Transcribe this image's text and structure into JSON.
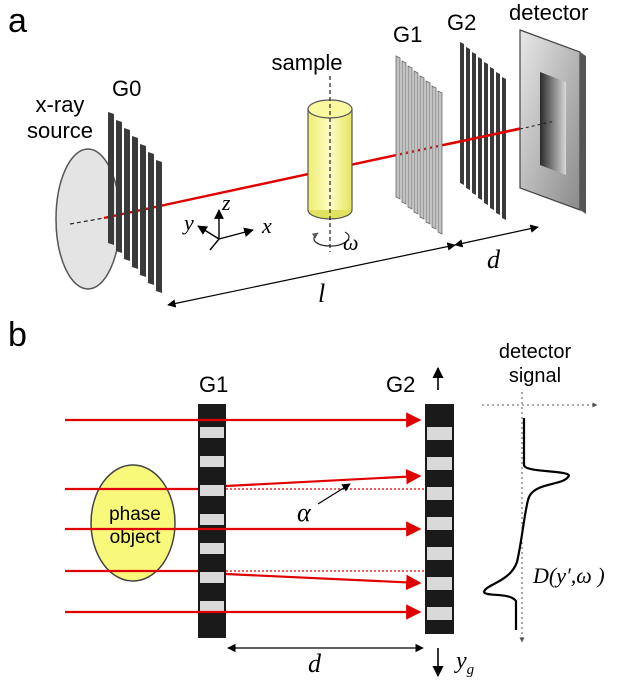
{
  "panel_a": {
    "panel_label": "a",
    "source_line1": "x-ray",
    "source_line2": "source",
    "g0": "G0",
    "sample": "sample",
    "g1": "G1",
    "g2": "G2",
    "detector": "detector",
    "axis_y": "y",
    "axis_z": "z",
    "axis_x": "x",
    "omega": "ω",
    "distance_l": "l",
    "distance_d": "d"
  },
  "panel_b": {
    "panel_label": "b",
    "g1": "G1",
    "g2": "G2",
    "signal_line1": "detector",
    "signal_line2": "signal",
    "phase_line1": "phase",
    "phase_line2": "object",
    "alpha": "α",
    "distance_d": "d",
    "yg_base": "y",
    "yg_sub": "g",
    "signal_func": "D(y′,ω )"
  },
  "colors": {
    "beam": "#e00000",
    "sample_fill": "#f6f58a",
    "grating_dark": "#333333",
    "grating_light": "#bdbdbd",
    "detector_frame": "#9a9a9a"
  }
}
